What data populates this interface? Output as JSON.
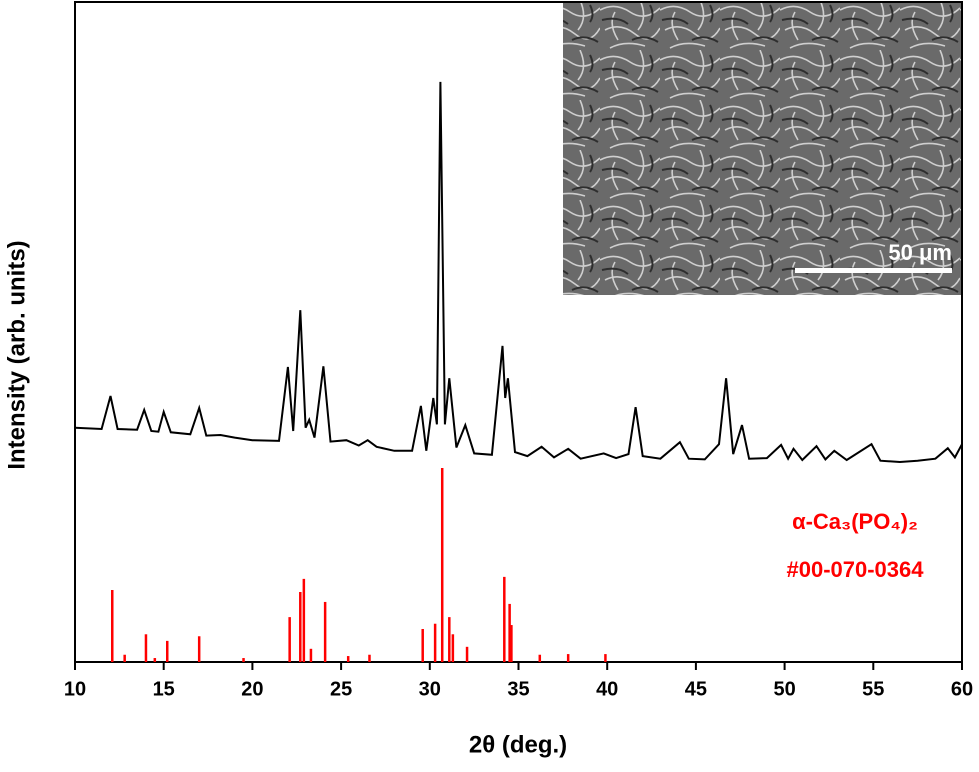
{
  "chart_data": {
    "type": "xrd",
    "xlabel": "2θ (deg.)",
    "ylabel": "Intensity (arb. units)",
    "xlim": [
      10,
      60
    ],
    "xticks": [
      10,
      15,
      20,
      25,
      30,
      35,
      40,
      45,
      50,
      55,
      60
    ],
    "ylim": [
      0,
      100
    ],
    "series": [
      {
        "type": "line",
        "color": "#000000",
        "x": [
          10,
          11.5,
          12.0,
          12.4,
          13.5,
          13.9,
          14.3,
          14.7,
          15.0,
          15.4,
          16.5,
          17.0,
          17.4,
          18.2,
          19.0,
          20.0,
          21.5,
          22.0,
          22.3,
          22.7,
          23.0,
          23.2,
          23.5,
          24.0,
          24.4,
          25.3,
          26.0,
          26.5,
          27.0,
          28.0,
          29.0,
          29.5,
          29.8,
          30.2,
          30.4,
          30.6,
          30.85,
          31.1,
          31.5,
          32.0,
          32.5,
          33.5,
          34.1,
          34.25,
          34.4,
          34.8,
          35.5,
          36.3,
          37.0,
          37.8,
          38.5,
          39.8,
          40.5,
          41.2,
          41.6,
          42.0,
          43.0,
          44.1,
          44.6,
          45.5,
          46.3,
          46.7,
          47.1,
          47.6,
          48.0,
          49.0,
          49.8,
          50.2,
          50.5,
          51.0,
          51.8,
          52.3,
          52.8,
          53.5,
          54.9,
          55.4,
          56.5,
          57.5,
          58.5,
          59.2,
          59.6,
          60.0
        ],
        "values": [
          35.5,
          35.3,
          40.3,
          35.3,
          35.2,
          38.2,
          35.0,
          34.9,
          37.9,
          34.8,
          34.5,
          38.5,
          34.3,
          34.4,
          34.0,
          33.6,
          33.5,
          44.7,
          35.0,
          53.3,
          35.5,
          36.7,
          34.0,
          44.8,
          33.4,
          33.6,
          32.8,
          33.6,
          32.6,
          32.0,
          32.0,
          38.8,
          32.0,
          40.0,
          36.0,
          87.9,
          36.0,
          43.0,
          32.5,
          35.9,
          31.6,
          31.4,
          47.9,
          40.0,
          43.0,
          31.8,
          31.2,
          32.6,
          31.0,
          32.3,
          30.8,
          31.6,
          30.9,
          31.5,
          38.6,
          31.2,
          30.8,
          33.3,
          30.8,
          30.7,
          33.0,
          43.0,
          31.5,
          35.9,
          30.8,
          30.9,
          32.9,
          30.8,
          32.3,
          30.6,
          32.7,
          30.7,
          32.0,
          30.6,
          33.0,
          30.5,
          30.3,
          30.5,
          30.8,
          32.4,
          31.0,
          33.0
        ]
      },
      {
        "type": "stick",
        "color": "#ff0000",
        "x": [
          12.1,
          12.8,
          14.0,
          14.5,
          15.2,
          17.0,
          19.5,
          22.1,
          22.7,
          22.9,
          23.3,
          24.1,
          25.4,
          26.6,
          29.6,
          30.3,
          30.7,
          31.1,
          31.3,
          32.1,
          34.2,
          34.5,
          34.6,
          36.2,
          37.8,
          39.9
        ],
        "values": [
          10.9,
          1.1,
          4.2,
          0.6,
          3.2,
          3.9,
          0.6,
          6.8,
          10.6,
          12.6,
          2.0,
          9.1,
          0.9,
          1.1,
          5.0,
          5.8,
          29.4,
          6.8,
          4.2,
          2.3,
          12.9,
          8.8,
          5.6,
          1.1,
          1.2,
          1.2
        ]
      }
    ],
    "annotations": [
      {
        "text": "α-Ca₃(PO₄)₂"
      },
      {
        "text": "#00-070-0364"
      }
    ],
    "inset_label": "50 μm"
  }
}
